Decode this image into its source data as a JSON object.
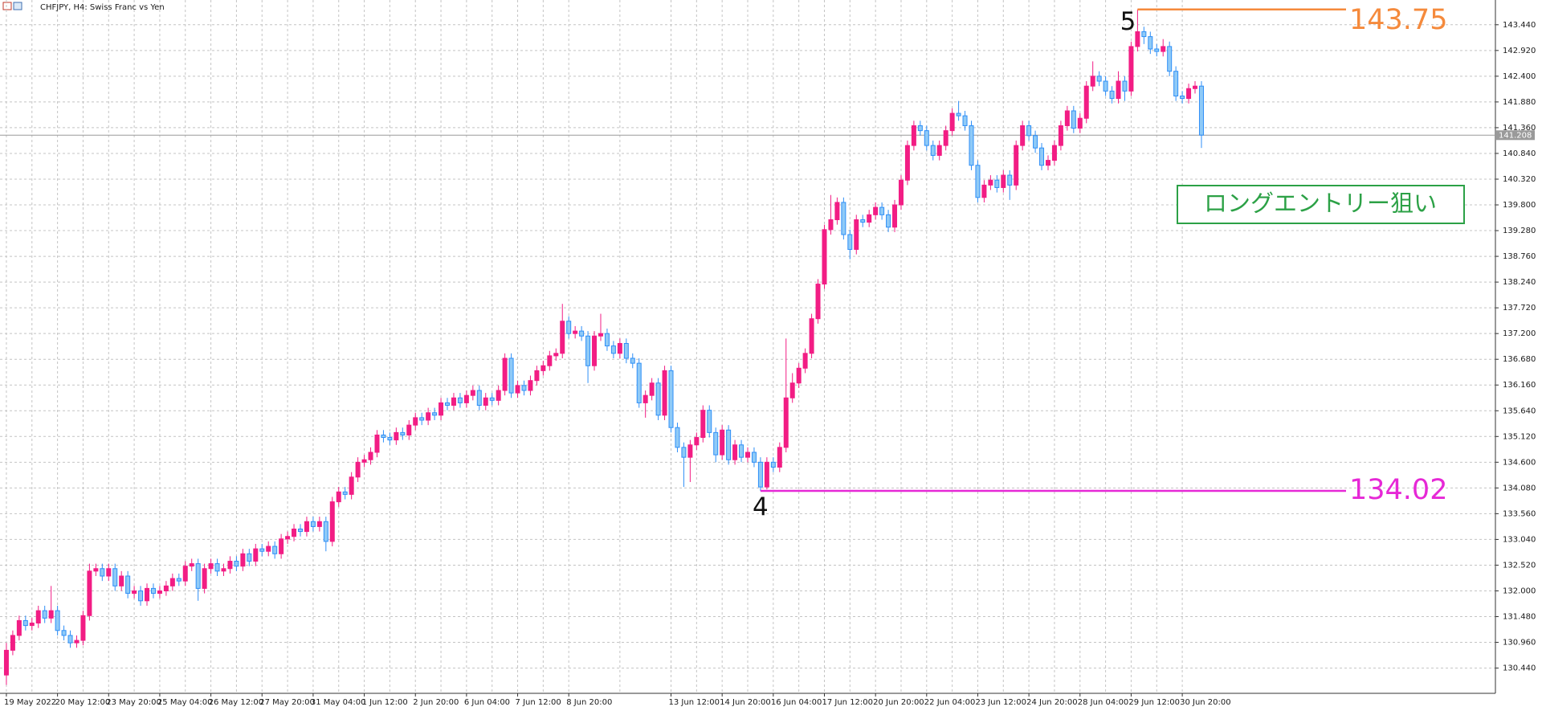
{
  "chart_data": {
    "type": "candlestick",
    "title": "CHFJPY, H4:  Swiss Franc vs Yen",
    "up_color": "#f21d84",
    "down_color": "#2f8ff7",
    "down_fill": "#8fcaf7",
    "grid": true,
    "xlim": [
      -1,
      233
    ],
    "ylim": [
      129.93,
      143.94
    ],
    "yticks": [
      {
        "value": 130.44,
        "label": "130.440"
      },
      {
        "value": 130.96,
        "label": "130.960"
      },
      {
        "value": 131.48,
        "label": "131.480"
      },
      {
        "value": 132.0,
        "label": "132.000"
      },
      {
        "value": 132.52,
        "label": "132.520"
      },
      {
        "value": 133.04,
        "label": "133.040"
      },
      {
        "value": 133.56,
        "label": "133.560"
      },
      {
        "value": 134.08,
        "label": "134.080"
      },
      {
        "value": 134.6,
        "label": "134.600"
      },
      {
        "value": 135.12,
        "label": "135.120"
      },
      {
        "value": 135.64,
        "label": "135.640"
      },
      {
        "value": 136.16,
        "label": "136.160"
      },
      {
        "value": 136.68,
        "label": "136.680"
      },
      {
        "value": 137.2,
        "label": "137.200"
      },
      {
        "value": 137.72,
        "label": "137.720"
      },
      {
        "value": 138.24,
        "label": "138.240"
      },
      {
        "value": 138.76,
        "label": "138.760"
      },
      {
        "value": 139.28,
        "label": "139.280"
      },
      {
        "value": 139.8,
        "label": "139.800"
      },
      {
        "value": 140.32,
        "label": "140.320"
      },
      {
        "value": 140.84,
        "label": "140.840"
      },
      {
        "value": 141.36,
        "label": "141.360"
      },
      {
        "value": 141.88,
        "label": "141.880"
      },
      {
        "value": 142.4,
        "label": "142.400"
      },
      {
        "value": 142.92,
        "label": "142.920"
      },
      {
        "value": 143.44,
        "label": "143.440"
      }
    ],
    "xticks": [
      {
        "value": 0,
        "label": "19 May 2022"
      },
      {
        "value": 8,
        "label": "20 May 12:00"
      },
      {
        "value": 16,
        "label": "23 May 20:00"
      },
      {
        "value": 24,
        "label": "25 May 04:00"
      },
      {
        "value": 32,
        "label": "26 May 12:00"
      },
      {
        "value": 40,
        "label": "27 May 20:00"
      },
      {
        "value": 48,
        "label": "31 May 04:00"
      },
      {
        "value": 56,
        "label": "1 Jun 12:00"
      },
      {
        "value": 64,
        "label": "2 Jun 20:00"
      },
      {
        "value": 72,
        "label": "6 Jun 04:00"
      },
      {
        "value": 80,
        "label": "7 Jun 12:00"
      },
      {
        "value": 88,
        "label": "8 Jun 20:00"
      },
      {
        "value": 104,
        "label": "13 Jun 12:00"
      },
      {
        "value": 112,
        "label": "14 Jun 20:00"
      },
      {
        "value": 120,
        "label": "16 Jun 04:00"
      },
      {
        "value": 128,
        "label": "17 Jun 12:00"
      },
      {
        "value": 136,
        "label": "20 Jun 20:00"
      },
      {
        "value": 144,
        "label": "22 Jun 04:00"
      },
      {
        "value": 152,
        "label": "23 Jun 12:00"
      },
      {
        "value": 160,
        "label": "24 Jun 20:00"
      },
      {
        "value": 168,
        "label": "28 Jun 04:00"
      },
      {
        "value": 176,
        "label": "29 Jun 12:00"
      },
      {
        "value": 184,
        "label": "30 Jun 20:00"
      }
    ],
    "ohlc": [
      [
        130.3,
        130.95,
        130.1,
        130.8
      ],
      [
        130.8,
        131.2,
        130.7,
        131.1
      ],
      [
        131.1,
        131.5,
        131.0,
        131.4
      ],
      [
        131.4,
        131.5,
        131.2,
        131.3
      ],
      [
        131.3,
        131.45,
        131.2,
        131.35
      ],
      [
        131.35,
        131.7,
        131.25,
        131.6
      ],
      [
        131.6,
        131.7,
        131.35,
        131.45
      ],
      [
        131.45,
        132.1,
        131.35,
        131.6
      ],
      [
        131.6,
        131.7,
        131.1,
        131.2
      ],
      [
        131.2,
        131.3,
        131.0,
        131.1
      ],
      [
        131.1,
        131.2,
        130.85,
        130.95
      ],
      [
        130.95,
        131.1,
        130.85,
        131.0
      ],
      [
        131.0,
        131.6,
        130.9,
        131.5
      ],
      [
        131.5,
        132.55,
        131.4,
        132.4
      ],
      [
        132.4,
        132.55,
        132.3,
        132.45
      ],
      [
        132.45,
        132.55,
        132.2,
        132.3
      ],
      [
        132.3,
        132.55,
        132.2,
        132.45
      ],
      [
        132.45,
        132.55,
        132.0,
        132.1
      ],
      [
        132.1,
        132.4,
        132.0,
        132.3
      ],
      [
        132.3,
        132.4,
        131.85,
        131.95
      ],
      [
        131.95,
        132.1,
        131.85,
        132.0
      ],
      [
        132.0,
        132.1,
        131.7,
        131.8
      ],
      [
        131.8,
        132.15,
        131.7,
        132.05
      ],
      [
        132.05,
        132.15,
        131.85,
        131.95
      ],
      [
        131.95,
        132.1,
        131.85,
        132.0
      ],
      [
        132.0,
        132.2,
        131.9,
        132.1
      ],
      [
        132.1,
        132.35,
        132.0,
        132.25
      ],
      [
        132.25,
        132.35,
        132.1,
        132.2
      ],
      [
        132.2,
        132.6,
        132.1,
        132.5
      ],
      [
        132.5,
        132.65,
        132.4,
        132.55
      ],
      [
        132.55,
        132.65,
        131.8,
        132.05
      ],
      [
        132.05,
        132.55,
        131.95,
        132.45
      ],
      [
        132.45,
        132.65,
        132.35,
        132.55
      ],
      [
        132.55,
        132.65,
        132.3,
        132.4
      ],
      [
        132.4,
        132.55,
        132.3,
        132.45
      ],
      [
        132.45,
        132.7,
        132.35,
        132.6
      ],
      [
        132.6,
        132.7,
        132.4,
        132.5
      ],
      [
        132.5,
        132.85,
        132.4,
        132.75
      ],
      [
        132.75,
        132.85,
        132.5,
        132.6
      ],
      [
        132.6,
        132.95,
        132.5,
        132.85
      ],
      [
        132.85,
        132.95,
        132.7,
        132.8
      ],
      [
        132.8,
        133.0,
        132.7,
        132.9
      ],
      [
        132.9,
        133.0,
        132.65,
        132.75
      ],
      [
        132.75,
        133.15,
        132.65,
        133.05
      ],
      [
        133.05,
        133.2,
        132.95,
        133.1
      ],
      [
        133.1,
        133.35,
        133.0,
        133.25
      ],
      [
        133.25,
        133.35,
        133.1,
        133.2
      ],
      [
        133.2,
        133.5,
        133.1,
        133.4
      ],
      [
        133.4,
        133.5,
        133.2,
        133.3
      ],
      [
        133.3,
        133.5,
        133.2,
        133.4
      ],
      [
        133.4,
        133.5,
        132.8,
        133.0
      ],
      [
        133.0,
        133.9,
        132.9,
        133.8
      ],
      [
        133.8,
        134.1,
        133.7,
        134.0
      ],
      [
        134.0,
        134.1,
        133.85,
        133.95
      ],
      [
        133.95,
        134.4,
        133.85,
        134.3
      ],
      [
        134.3,
        134.7,
        134.2,
        134.6
      ],
      [
        134.6,
        134.75,
        134.5,
        134.65
      ],
      [
        134.65,
        134.9,
        134.55,
        134.8
      ],
      [
        134.8,
        135.25,
        134.7,
        135.15
      ],
      [
        135.15,
        135.25,
        135.0,
        135.1
      ],
      [
        135.1,
        135.2,
        134.95,
        135.05
      ],
      [
        135.05,
        135.3,
        134.95,
        135.2
      ],
      [
        135.2,
        135.3,
        135.05,
        135.15
      ],
      [
        135.15,
        135.45,
        135.05,
        135.35
      ],
      [
        135.35,
        135.6,
        135.25,
        135.5
      ],
      [
        135.5,
        135.6,
        135.35,
        135.45
      ],
      [
        135.45,
        135.7,
        135.35,
        135.6
      ],
      [
        135.6,
        135.7,
        135.45,
        135.55
      ],
      [
        135.55,
        135.9,
        135.45,
        135.8
      ],
      [
        135.8,
        135.9,
        135.65,
        135.75
      ],
      [
        135.75,
        136.0,
        135.65,
        135.9
      ],
      [
        135.9,
        136.0,
        135.7,
        135.8
      ],
      [
        135.8,
        136.05,
        135.7,
        135.95
      ],
      [
        135.95,
        136.15,
        135.85,
        136.05
      ],
      [
        136.05,
        136.15,
        135.65,
        135.75
      ],
      [
        135.75,
        136.0,
        135.65,
        135.9
      ],
      [
        135.9,
        136.0,
        135.75,
        135.85
      ],
      [
        135.85,
        136.15,
        135.75,
        136.05
      ],
      [
        136.05,
        136.8,
        135.95,
        136.7
      ],
      [
        136.7,
        136.8,
        135.9,
        136.0
      ],
      [
        136.0,
        136.25,
        135.9,
        136.15
      ],
      [
        136.15,
        136.25,
        135.95,
        136.05
      ],
      [
        136.05,
        136.35,
        135.95,
        136.25
      ],
      [
        136.25,
        136.55,
        136.15,
        136.45
      ],
      [
        136.45,
        136.65,
        136.35,
        136.55
      ],
      [
        136.55,
        136.85,
        136.45,
        136.75
      ],
      [
        136.75,
        136.9,
        136.65,
        136.8
      ],
      [
        136.8,
        137.8,
        136.7,
        137.45
      ],
      [
        137.45,
        137.55,
        137.1,
        137.2
      ],
      [
        137.2,
        137.35,
        137.1,
        137.25
      ],
      [
        137.25,
        137.35,
        137.05,
        137.15
      ],
      [
        137.15,
        137.25,
        136.2,
        136.55
      ],
      [
        136.55,
        137.25,
        136.45,
        137.15
      ],
      [
        137.15,
        137.6,
        137.05,
        137.2
      ],
      [
        137.2,
        137.3,
        136.85,
        136.95
      ],
      [
        136.95,
        137.05,
        136.7,
        136.8
      ],
      [
        136.8,
        137.1,
        136.7,
        137.0
      ],
      [
        137.0,
        137.1,
        136.6,
        136.7
      ],
      [
        136.7,
        136.8,
        136.5,
        136.6
      ],
      [
        136.6,
        136.7,
        135.7,
        135.8
      ],
      [
        135.8,
        136.05,
        135.5,
        135.95
      ],
      [
        135.95,
        136.3,
        135.85,
        136.2
      ],
      [
        136.2,
        136.3,
        135.45,
        135.55
      ],
      [
        135.55,
        136.55,
        135.45,
        136.45
      ],
      [
        136.45,
        136.55,
        135.2,
        135.3
      ],
      [
        135.3,
        135.4,
        134.8,
        134.9
      ],
      [
        134.9,
        135.0,
        134.1,
        134.7
      ],
      [
        134.7,
        135.05,
        134.2,
        134.95
      ],
      [
        134.95,
        135.2,
        134.85,
        135.1
      ],
      [
        135.1,
        135.75,
        135.0,
        135.65
      ],
      [
        135.65,
        135.75,
        135.1,
        135.2
      ],
      [
        135.2,
        135.3,
        134.6,
        134.75
      ],
      [
        134.75,
        135.35,
        134.65,
        135.25
      ],
      [
        135.25,
        135.35,
        134.55,
        134.65
      ],
      [
        134.65,
        135.05,
        134.55,
        134.95
      ],
      [
        134.95,
        135.05,
        134.6,
        134.7
      ],
      [
        134.7,
        134.9,
        134.6,
        134.8
      ],
      [
        134.8,
        134.9,
        134.5,
        134.6
      ],
      [
        134.6,
        134.7,
        134.02,
        134.1
      ],
      [
        134.1,
        134.7,
        134.05,
        134.6
      ],
      [
        134.6,
        134.7,
        134.4,
        134.5
      ],
      [
        134.5,
        135.0,
        134.4,
        134.9
      ],
      [
        134.9,
        137.1,
        134.8,
        135.9
      ],
      [
        135.9,
        136.4,
        135.8,
        136.2
      ],
      [
        136.2,
        136.6,
        136.1,
        136.5
      ],
      [
        136.5,
        136.9,
        136.4,
        136.8
      ],
      [
        136.8,
        137.6,
        136.7,
        137.5
      ],
      [
        137.5,
        138.3,
        137.4,
        138.2
      ],
      [
        138.2,
        139.4,
        138.1,
        139.3
      ],
      [
        139.3,
        140.0,
        139.2,
        139.5
      ],
      [
        139.5,
        139.95,
        139.4,
        139.85
      ],
      [
        139.85,
        139.95,
        139.1,
        139.2
      ],
      [
        139.2,
        139.3,
        138.7,
        138.9
      ],
      [
        138.9,
        139.6,
        138.8,
        139.5
      ],
      [
        139.5,
        139.6,
        139.35,
        139.45
      ],
      [
        139.45,
        139.7,
        139.35,
        139.6
      ],
      [
        139.6,
        139.85,
        139.5,
        139.75
      ],
      [
        139.75,
        139.85,
        139.5,
        139.6
      ],
      [
        139.6,
        139.7,
        139.25,
        139.35
      ],
      [
        139.35,
        139.9,
        139.25,
        139.8
      ],
      [
        139.8,
        140.4,
        139.7,
        140.3
      ],
      [
        140.3,
        141.1,
        140.2,
        141.0
      ],
      [
        141.0,
        141.5,
        140.9,
        141.4
      ],
      [
        141.4,
        141.5,
        141.2,
        141.3
      ],
      [
        141.3,
        141.4,
        140.9,
        141.0
      ],
      [
        141.0,
        141.1,
        140.7,
        140.8
      ],
      [
        140.8,
        141.1,
        140.7,
        141.0
      ],
      [
        141.0,
        141.4,
        140.9,
        141.3
      ],
      [
        141.3,
        141.75,
        141.2,
        141.65
      ],
      [
        141.65,
        141.9,
        141.5,
        141.6
      ],
      [
        141.6,
        141.7,
        141.3,
        141.4
      ],
      [
        141.4,
        141.5,
        140.5,
        140.6
      ],
      [
        140.6,
        140.7,
        139.85,
        139.95
      ],
      [
        139.95,
        140.3,
        139.85,
        140.2
      ],
      [
        140.2,
        140.4,
        140.1,
        140.3
      ],
      [
        140.3,
        140.4,
        140.05,
        140.15
      ],
      [
        140.15,
        140.5,
        140.05,
        140.4
      ],
      [
        140.4,
        140.5,
        139.9,
        140.2
      ],
      [
        140.2,
        141.1,
        140.1,
        141.0
      ],
      [
        141.0,
        141.5,
        140.9,
        141.4
      ],
      [
        141.4,
        141.5,
        141.1,
        141.2
      ],
      [
        141.2,
        141.3,
        140.85,
        140.95
      ],
      [
        140.95,
        141.05,
        140.5,
        140.6
      ],
      [
        140.6,
        140.8,
        140.5,
        140.7
      ],
      [
        140.7,
        141.1,
        140.6,
        141.0
      ],
      [
        141.0,
        141.5,
        140.9,
        141.4
      ],
      [
        141.4,
        141.8,
        141.3,
        141.7
      ],
      [
        141.7,
        141.8,
        141.25,
        141.35
      ],
      [
        141.35,
        141.65,
        141.25,
        141.55
      ],
      [
        141.55,
        142.3,
        141.45,
        142.2
      ],
      [
        142.2,
        142.7,
        142.1,
        142.4
      ],
      [
        142.4,
        142.5,
        142.2,
        142.3
      ],
      [
        142.3,
        142.4,
        142.0,
        142.1
      ],
      [
        142.1,
        142.2,
        141.85,
        141.95
      ],
      [
        141.95,
        142.5,
        141.85,
        142.3
      ],
      [
        142.3,
        142.4,
        141.9,
        142.1
      ],
      [
        142.1,
        143.1,
        142.0,
        143.0
      ],
      [
        143.0,
        143.75,
        142.9,
        143.3
      ],
      [
        143.3,
        143.4,
        143.05,
        143.2
      ],
      [
        143.2,
        143.3,
        142.85,
        142.95
      ],
      [
        142.95,
        143.05,
        142.8,
        142.9
      ],
      [
        142.9,
        143.15,
        142.8,
        143.0
      ],
      [
        143.0,
        143.1,
        142.4,
        142.5
      ],
      [
        142.5,
        142.6,
        141.9,
        142.0
      ],
      [
        142.0,
        142.1,
        141.85,
        141.95
      ],
      [
        141.95,
        142.25,
        141.85,
        142.15
      ],
      [
        142.15,
        142.3,
        142.05,
        142.2
      ],
      [
        142.2,
        142.3,
        140.95,
        141.21
      ]
    ],
    "current_price": {
      "value": 141.208,
      "color": "#9a9a9a"
    },
    "levels": [
      {
        "label": "5",
        "x": 177,
        "value": 143.75,
        "color": "#f58a3c"
      },
      {
        "label": "4",
        "x": 118,
        "value": 134.02,
        "color": "#e628d6"
      }
    ],
    "note": {
      "text": "ロングエントリー狙い",
      "color": "#2ca146"
    }
  }
}
